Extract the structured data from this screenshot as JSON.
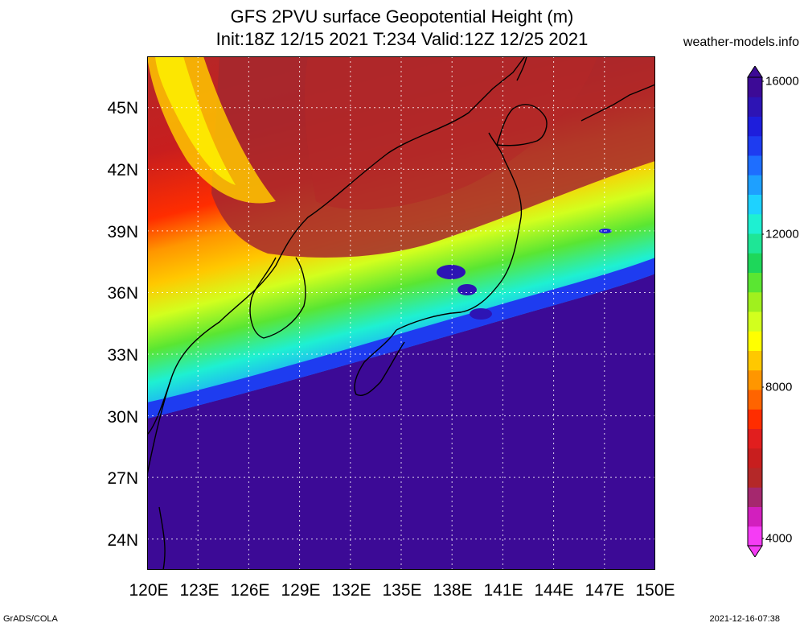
{
  "title_line1": "GFS 2PVU surface Geopotential Height (m)",
  "title_line2": "Init:18Z 12/15 2021 T:234 Valid:12Z 12/25 2021",
  "site": "weather-models.info",
  "footer_left": "GrADS/COLA",
  "footer_right": "2021-12-16-07:38",
  "map": {
    "lat_labels": [
      "45N",
      "42N",
      "39N",
      "36N",
      "33N",
      "30N",
      "27N",
      "24N"
    ],
    "lon_labels": [
      "120E",
      "123E",
      "126E",
      "129E",
      "132E",
      "135E",
      "138E",
      "141E",
      "144E",
      "147E",
      "150E"
    ],
    "lat_range": [
      22.5,
      47.5
    ],
    "lon_range": [
      120,
      150
    ]
  },
  "colorbar": {
    "labels": [
      "16000",
      "12000",
      "8000",
      "4000"
    ],
    "colors": [
      "#f53cf5",
      "#d21fbe",
      "#a5286e",
      "#b42828",
      "#c81e1e",
      "#e11e1e",
      "#ff2d00",
      "#ff6400",
      "#ff9600",
      "#ffc800",
      "#ffff00",
      "#d2ff1e",
      "#a0f01e",
      "#5ae632",
      "#1ed75a",
      "#1ee696",
      "#1ef0d2",
      "#1ed2ff",
      "#1ea0ff",
      "#1e6eff",
      "#1e3cf0",
      "#1e1edc",
      "#2d14b4",
      "#3c0a96"
    ]
  }
}
